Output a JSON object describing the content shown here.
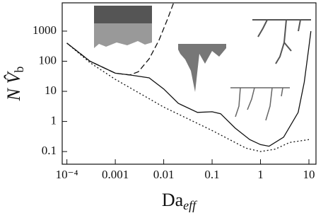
{
  "chart_data": {
    "type": "line",
    "log_x": true,
    "log_y": true,
    "xlabel": "Da",
    "xlabel_sub": "eff",
    "ylabel": "N V̂",
    "ylabel_sub": "b",
    "xlim": [
      8e-05,
      14
    ],
    "ylim": [
      0.038,
      8700
    ],
    "xticks": [
      {
        "value": 0.0001,
        "label": "10⁻⁴"
      },
      0.001,
      0.01,
      0.1,
      1,
      10
    ],
    "yticks": [
      0.1,
      1,
      10,
      100,
      1000
    ],
    "series": [
      {
        "style": "solid",
        "color": "#111111",
        "x": [
          0.0001,
          0.0003,
          0.001,
          0.002,
          0.005,
          0.01,
          0.02,
          0.05,
          0.1,
          0.15,
          0.3,
          0.6,
          1,
          1.5,
          3,
          6,
          8,
          10,
          11
        ],
        "values": [
          400,
          100,
          40,
          35,
          28,
          12,
          4,
          2,
          2.1,
          1.8,
          0.6,
          0.25,
          0.17,
          0.15,
          0.3,
          2,
          20,
          300,
          1000
        ]
      },
      {
        "style": "dashed",
        "color": "#111111",
        "x": [
          0.0001,
          0.0003,
          0.001,
          0.002,
          0.003,
          0.005,
          0.008,
          0.012,
          0.016
        ],
        "values": [
          400,
          100,
          40,
          35,
          45,
          120,
          500,
          2500,
          8700
        ]
      },
      {
        "style": "dotted",
        "color": "#111111",
        "x": [
          0.0001,
          0.0003,
          0.001,
          0.01,
          0.1,
          0.5,
          1,
          2,
          4,
          10
        ],
        "values": [
          400,
          90,
          25,
          3,
          0.5,
          0.13,
          0.1,
          0.12,
          0.2,
          0.25
        ]
      }
    ]
  }
}
